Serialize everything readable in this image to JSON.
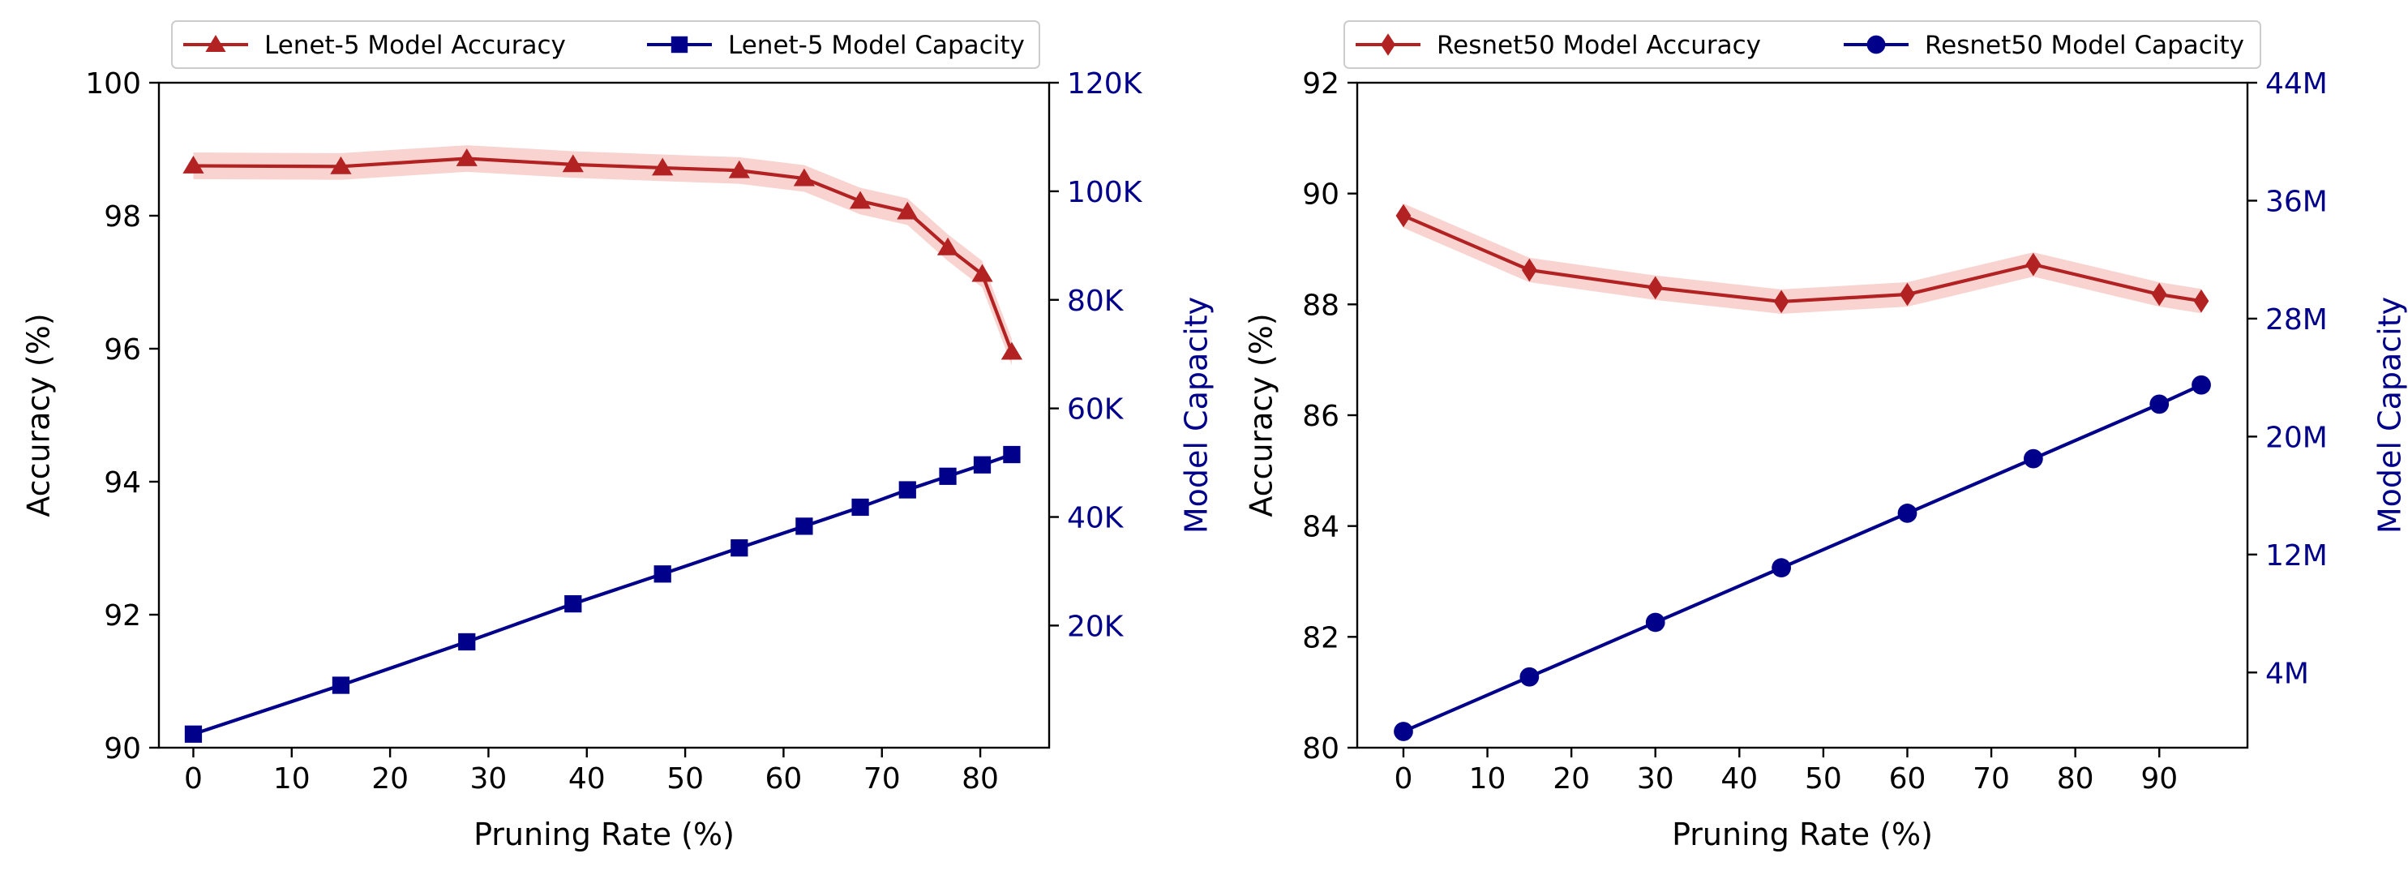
{
  "chart_data": [
    {
      "type": "line",
      "title": "",
      "xlabel": "Pruning Rate (%)",
      "ylabel": "Accuracy (%)",
      "ylabel_right": "Model Capacity",
      "xlim": [
        -3.5,
        87
      ],
      "ylim": [
        90,
        100
      ],
      "ylim_right": [
        -2500,
        120000
      ],
      "x_ticks": [
        0,
        10,
        20,
        30,
        40,
        50,
        60,
        70,
        80
      ],
      "x_tick_labels": [
        "0",
        "10",
        "20",
        "30",
        "40",
        "50",
        "60",
        "70",
        "80"
      ],
      "y_ticks": [
        90,
        92,
        94,
        96,
        98,
        100
      ],
      "y_tick_labels": [
        "90",
        "92",
        "94",
        "96",
        "98",
        "100"
      ],
      "y_right_ticks": [
        20000,
        40000,
        60000,
        80000,
        100000,
        120000
      ],
      "y_right_tick_labels": [
        "20K",
        "40K",
        "60K",
        "80K",
        "100K",
        "120K"
      ],
      "legend_position": "top",
      "series": [
        {
          "name": "Lenet-5 Model Accuracy",
          "axis": "left",
          "marker": "triangle",
          "color": "#B22222",
          "band_color": "#F4B6B0",
          "x": [
            0,
            15,
            27.8,
            38.6,
            47.7,
            55.5,
            62.1,
            67.8,
            72.6,
            76.7,
            80.2,
            83.2
          ],
          "values": [
            98.75,
            98.74,
            98.86,
            98.77,
            98.72,
            98.68,
            98.56,
            98.22,
            98.06,
            97.52,
            97.12,
            95.95
          ],
          "band": 0.2
        },
        {
          "name": "Lenet-5 Model Capacity",
          "axis": "right",
          "marker": "square",
          "color": "#00008B",
          "x": [
            0,
            15,
            27.8,
            38.6,
            47.7,
            55.5,
            62.1,
            67.8,
            72.6,
            76.7,
            80.2,
            83.2
          ],
          "values": [
            0,
            9000,
            17000,
            24000,
            29500,
            34300,
            38300,
            41800,
            45000,
            47500,
            49600,
            51500
          ]
        }
      ]
    },
    {
      "type": "line",
      "title": "",
      "xlabel": "Pruning Rate (%)",
      "ylabel": "Accuracy (%)",
      "ylabel_right": "Model Capacity",
      "xlim": [
        -5.5,
        100.5
      ],
      "ylim": [
        80,
        92
      ],
      "ylim_right": [
        -1100000,
        44000000
      ],
      "x_ticks": [
        0,
        10,
        20,
        30,
        40,
        50,
        60,
        70,
        80,
        90
      ],
      "x_tick_labels": [
        "0",
        "10",
        "20",
        "30",
        "40",
        "50",
        "60",
        "70",
        "80",
        "90"
      ],
      "y_ticks": [
        80,
        82,
        84,
        86,
        88,
        90,
        92
      ],
      "y_tick_labels": [
        "80",
        "82",
        "84",
        "86",
        "88",
        "90",
        "92"
      ],
      "y_right_ticks": [
        4000000,
        12000000,
        20000000,
        28000000,
        36000000,
        44000000
      ],
      "y_right_tick_labels": [
        "4M",
        "12M",
        "20M",
        "28M",
        "36M",
        "44M"
      ],
      "legend_position": "top",
      "series": [
        {
          "name": "Resnet50 Model Accuracy",
          "axis": "left",
          "marker": "diamond",
          "color": "#B22222",
          "band_color": "#F4B6B0",
          "x": [
            0,
            15,
            30,
            45,
            60,
            75,
            90,
            95
          ],
          "values": [
            89.6,
            88.62,
            88.3,
            88.05,
            88.18,
            88.72,
            88.18,
            88.06
          ],
          "band": 0.22
        },
        {
          "name": "Resnet50 Model Capacity",
          "axis": "right",
          "marker": "circle",
          "color": "#00008B",
          "x": [
            0,
            15,
            30,
            45,
            60,
            75,
            90,
            95
          ],
          "values": [
            0,
            3700000,
            7400000,
            11100000,
            14800000,
            18500000,
            22200000,
            23500000
          ]
        }
      ]
    }
  ]
}
